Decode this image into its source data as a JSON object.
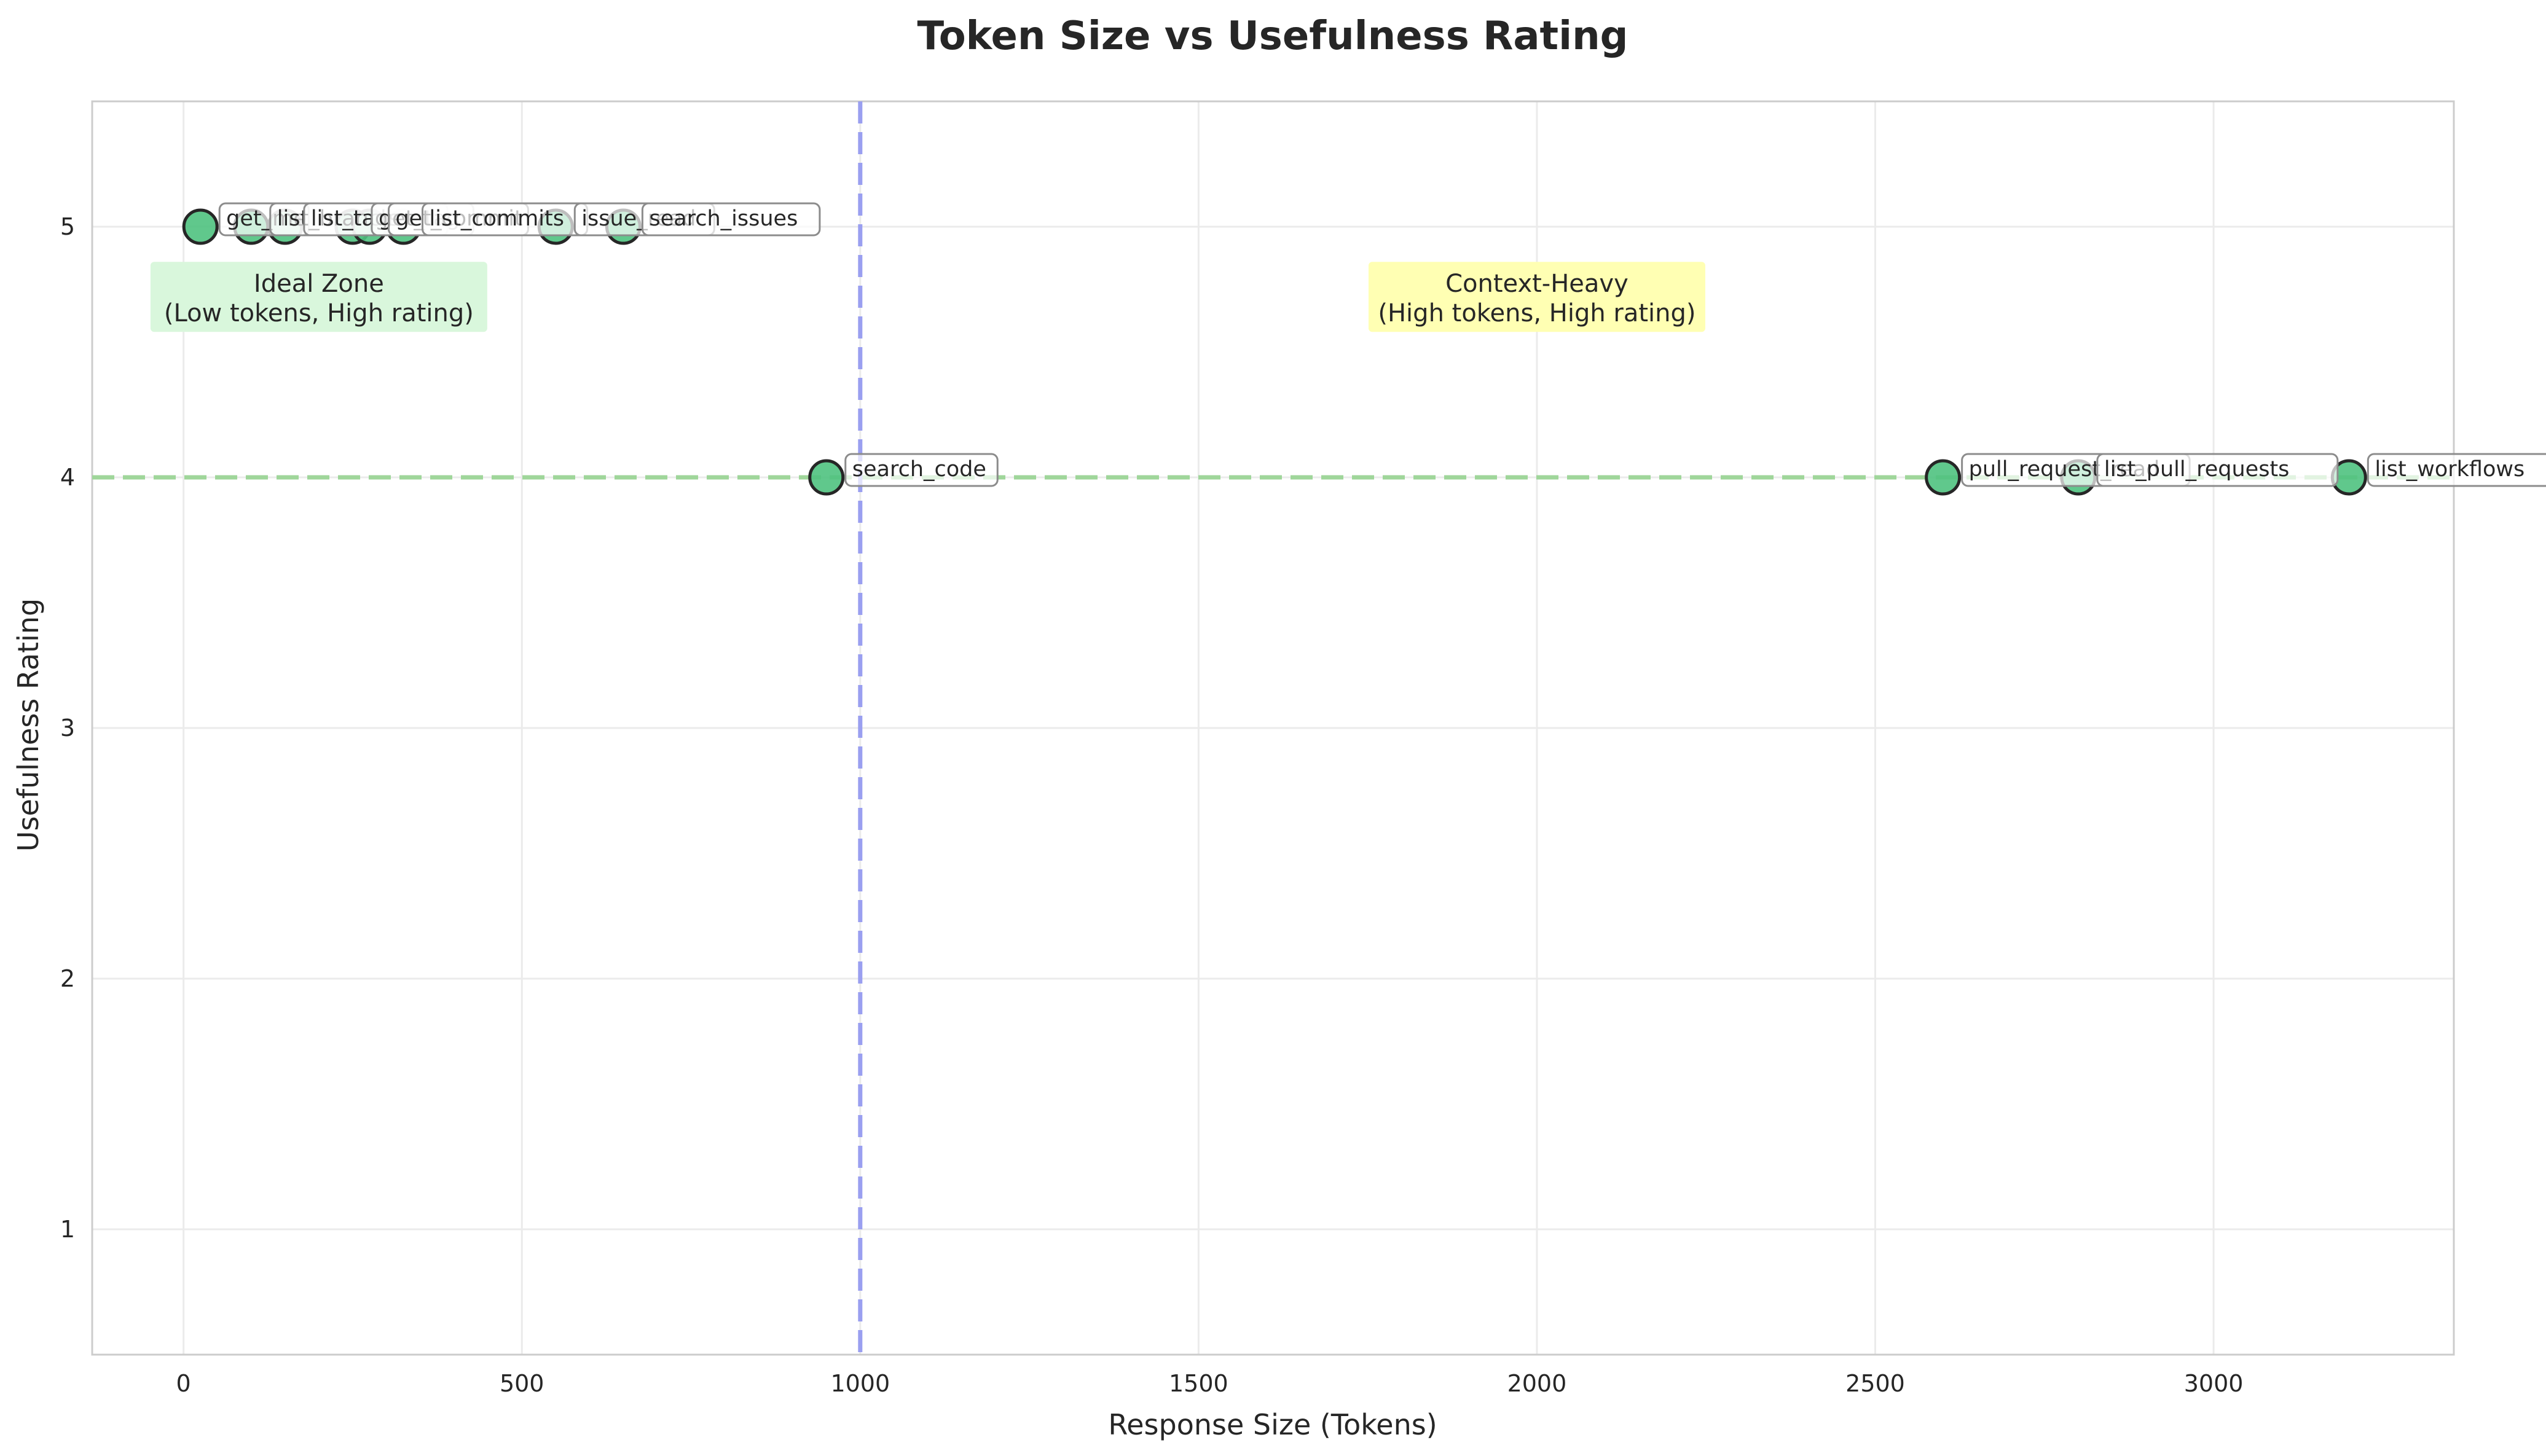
{
  "chart_data": {
    "type": "scatter",
    "title": "Token Size vs Usefulness Rating",
    "xlabel": "Response Size (Tokens)",
    "ylabel": "Usefulness Rating",
    "xlim": [
      -135,
      3355
    ],
    "ylim": [
      0.5,
      5.5
    ],
    "xticks": [
      0,
      500,
      1000,
      1500,
      2000,
      2500,
      3000
    ],
    "yticks": [
      1,
      2,
      3,
      4,
      5
    ],
    "grid": true,
    "points": [
      {
        "label": "get_me",
        "x": 25,
        "y": 5
      },
      {
        "label": "list_branches",
        "x": 100,
        "y": 5
      },
      {
        "label": "list_tags",
        "x": 150,
        "y": 5
      },
      {
        "label": "get_tag",
        "x": 250,
        "y": 5
      },
      {
        "label": "get_commit",
        "x": 275,
        "y": 5
      },
      {
        "label": "list_commits",
        "x": 325,
        "y": 5
      },
      {
        "label": "issue_read",
        "x": 550,
        "y": 5
      },
      {
        "label": "search_issues",
        "x": 650,
        "y": 5
      },
      {
        "label": "search_code",
        "x": 950,
        "y": 4
      },
      {
        "label": "pull_request_read",
        "x": 2600,
        "y": 4
      },
      {
        "label": "list_pull_requests",
        "x": 2800,
        "y": 4
      },
      {
        "label": "list_workflows",
        "x": 3200,
        "y": 4
      }
    ],
    "reference_lines": {
      "vertical_x": 1000,
      "horizontal_y": 4
    },
    "annotations": [
      {
        "text_line1": "Ideal Zone",
        "text_line2": "(Low tokens, High rating)",
        "x": 200,
        "y": 4.72,
        "bg": "#d9f7dc"
      },
      {
        "text_line1": "Context-Heavy",
        "text_line2": "(High tokens, High rating)",
        "x": 2000,
        "y": 4.72,
        "bg": "#ffffb3"
      }
    ],
    "colors": {
      "point_fill": "#4fc27f",
      "point_edge": "#262626",
      "vline": "#9a9ff0",
      "hline": "#9fd69a",
      "grid": "#ebebeb",
      "spine": "#cccccc"
    }
  }
}
